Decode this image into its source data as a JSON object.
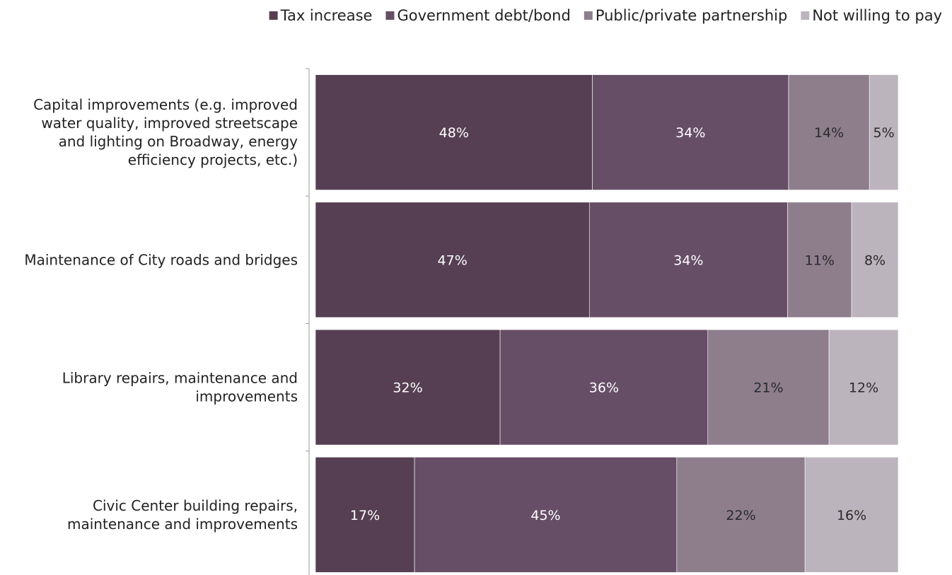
{
  "chart_data": {
    "type": "bar",
    "orientation": "horizontal",
    "stacked": "percent",
    "title": "",
    "xlabel": "",
    "ylabel": "",
    "grid": false,
    "legend_position": "top-right",
    "categories": [
      [
        "Capital improvements (e.g. improved",
        "water quality, improved streetscape",
        "and lighting on Broadway, energy",
        "efficiency projects, etc.)"
      ],
      [
        "Maintenance of City roads and bridges"
      ],
      [
        "Library repairs, maintenance and",
        "improvements"
      ],
      [
        "Civic Center building repairs,",
        "maintenance and improvements"
      ]
    ],
    "series": [
      {
        "name": "Tax increase",
        "color": "#563f53",
        "label_color": "#ffffff",
        "values": [
          48,
          47,
          32,
          17
        ],
        "labels": [
          "48%",
          "47%",
          "32%",
          "17%"
        ]
      },
      {
        "name": "Government debt/bond",
        "color": "#674e67",
        "label_color": "#ffffff",
        "values": [
          34,
          34,
          36,
          45
        ],
        "labels": [
          "34%",
          "34%",
          "36%",
          "45%"
        ]
      },
      {
        "name": "Public/private partnership",
        "color": "#8e7e8c",
        "label_color": "#2a2a2a",
        "values": [
          14,
          11,
          21,
          22
        ],
        "labels": [
          "14%",
          "11%",
          "21%",
          "22%"
        ]
      },
      {
        "name": "Not willing to pay",
        "color": "#bcb4bc",
        "label_color": "#2a2a2a",
        "values": [
          5,
          8,
          12,
          16
        ],
        "labels": [
          "5%",
          "8%",
          "12%",
          "16%"
        ]
      }
    ]
  }
}
